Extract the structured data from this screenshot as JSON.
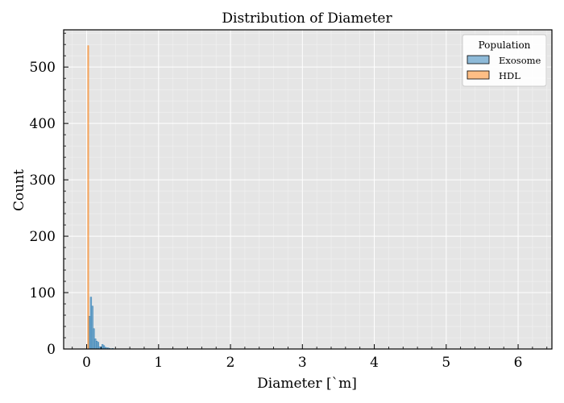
{
  "chart_data": {
    "type": "histogram",
    "title": "Distribution of Diameter",
    "xlabel": "Diameter [`m]",
    "ylabel": "Count",
    "xlim": [
      -0.32,
      6.47
    ],
    "ylim": [
      0,
      566
    ],
    "x_ticks": [
      0,
      1,
      2,
      3,
      4,
      5,
      6
    ],
    "y_ticks": [
      0,
      100,
      200,
      300,
      400,
      500
    ],
    "grid": true,
    "legend": {
      "title": "Population",
      "position": "top-right"
    },
    "series": [
      {
        "name": "Exosome",
        "color": "#1f77b4",
        "bins": [
          {
            "x0": 0.03,
            "x1": 0.05,
            "count": 58
          },
          {
            "x0": 0.05,
            "x1": 0.07,
            "count": 92
          },
          {
            "x0": 0.07,
            "x1": 0.09,
            "count": 76
          },
          {
            "x0": 0.09,
            "x1": 0.11,
            "count": 36
          },
          {
            "x0": 0.11,
            "x1": 0.13,
            "count": 18
          },
          {
            "x0": 0.13,
            "x1": 0.15,
            "count": 14
          },
          {
            "x0": 0.15,
            "x1": 0.17,
            "count": 12
          },
          {
            "x0": 0.17,
            "x1": 0.19,
            "count": 4
          },
          {
            "x0": 0.19,
            "x1": 0.21,
            "count": 3
          },
          {
            "x0": 0.21,
            "x1": 0.23,
            "count": 8
          },
          {
            "x0": 0.23,
            "x1": 0.25,
            "count": 6
          },
          {
            "x0": 0.25,
            "x1": 0.27,
            "count": 3
          },
          {
            "x0": 0.27,
            "x1": 0.29,
            "count": 2
          },
          {
            "x0": 0.29,
            "x1": 0.31,
            "count": 2
          },
          {
            "x0": 0.31,
            "x1": 0.33,
            "count": 1
          },
          {
            "x0": 0.35,
            "x1": 0.37,
            "count": 1
          }
        ]
      },
      {
        "name": "HDL",
        "color": "#ff7f0e",
        "bins": [
          {
            "x0": 0.015,
            "x1": 0.028,
            "count": 538
          }
        ]
      }
    ]
  }
}
